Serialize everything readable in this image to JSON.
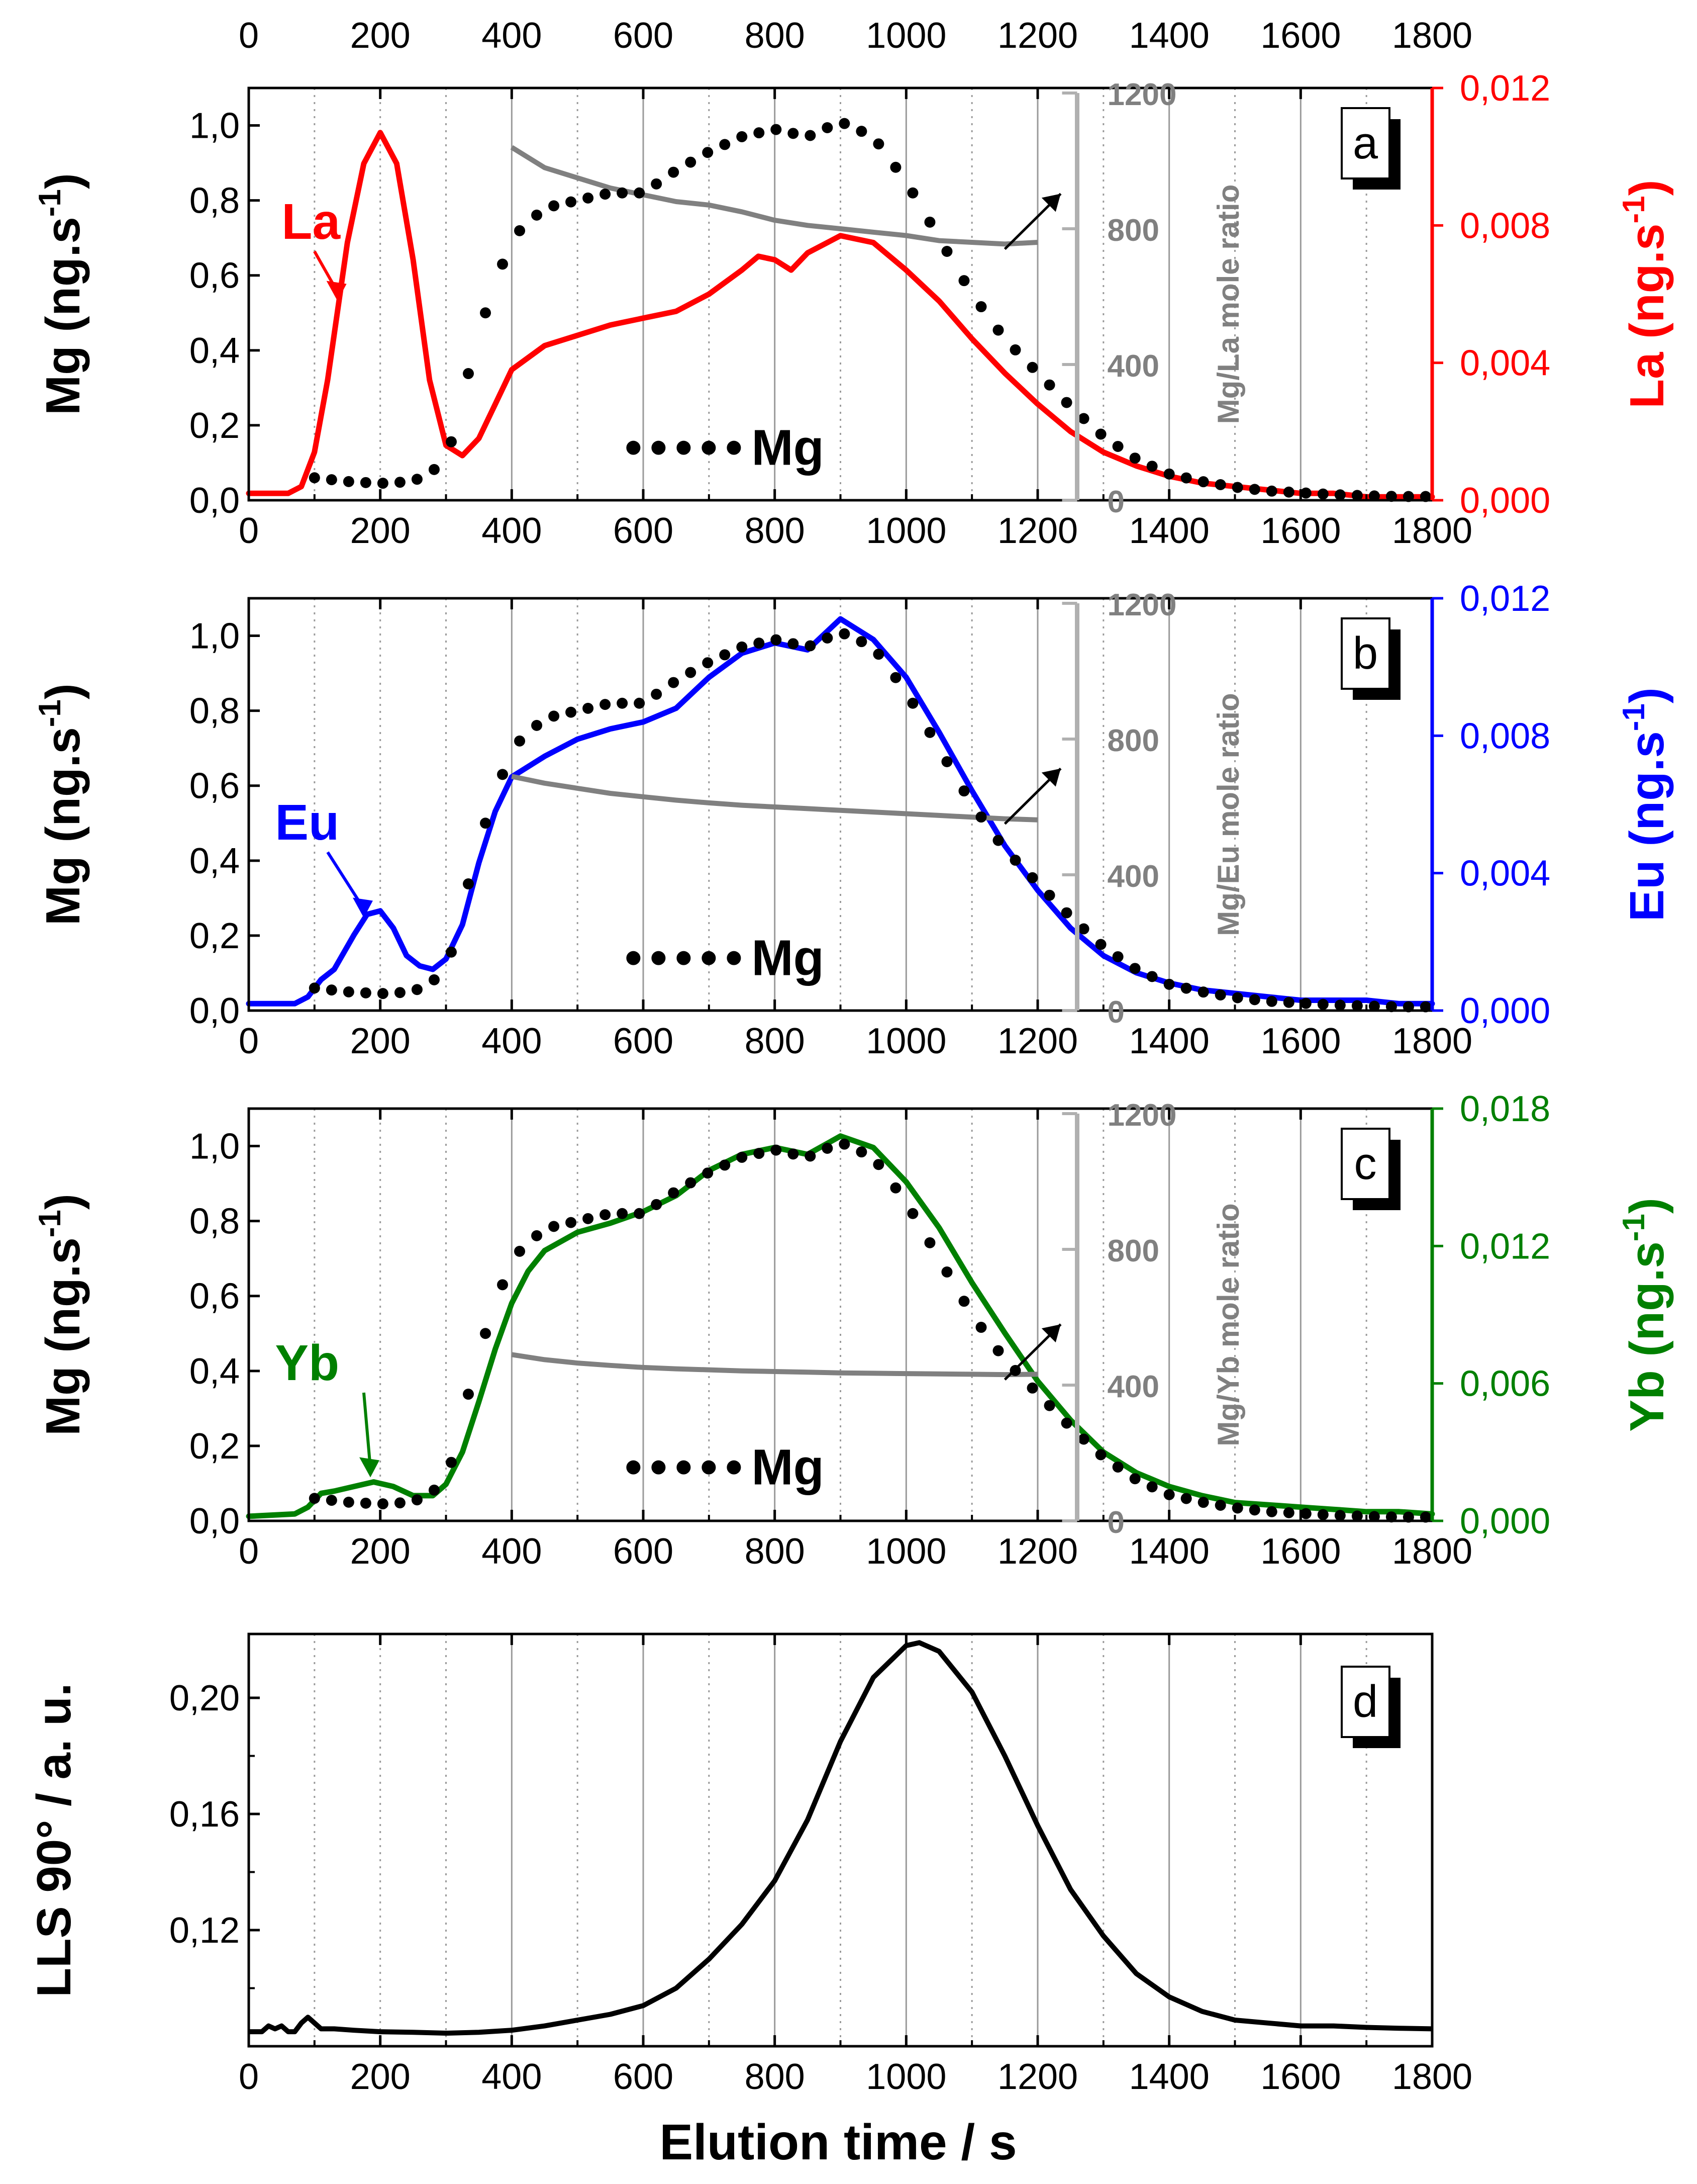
{
  "figure": {
    "x_axis_title": "Elution time / s",
    "x_ticks": [
      "0",
      "200",
      "400",
      "600",
      "800",
      "1000",
      "1200",
      "1400",
      "1600",
      "1800"
    ],
    "top_axis_ticks": [
      "0",
      "200",
      "400",
      "600",
      "800",
      "1000",
      "1200",
      "1400",
      "1600",
      "1800"
    ],
    "mg_label": "Mg",
    "mg_color": "#000000",
    "ratio_color": "#808080",
    "grid_solid": [
      400,
      600,
      800,
      1000,
      1200,
      1400,
      1600
    ],
    "grid_dotted": [
      100,
      200,
      300,
      500,
      700,
      900,
      1100,
      1300,
      1500,
      1700
    ]
  },
  "chart_data": [
    {
      "type": "line",
      "panel": "a",
      "panel_letter": "a",
      "element": "La",
      "element_color": "#ff0000",
      "xlabel": "Elution time / s",
      "xlim": [
        0,
        1800
      ],
      "ylabel_left": "Mg (ng.s-1)",
      "ylim_left": [
        0,
        1.1
      ],
      "left_ticks": [
        "0,0",
        "0,2",
        "0,4",
        "0,6",
        "0,8",
        "1,0"
      ],
      "ylabel_right": "La (ng.s-1)",
      "ylim_right": [
        0,
        0.012
      ],
      "right_ticks": [
        "0,000",
        "0,004",
        "0,008",
        "0,012"
      ],
      "ylabel_ratio": "Mg/La mole ratio",
      "ylim_ratio": [
        0,
        1200
      ],
      "ratio_ticks": [
        "0",
        "400",
        "800",
        "1200"
      ],
      "series": [
        {
          "name": "Mg",
          "axis": "left",
          "style": "dots",
          "x": [
            100,
            150,
            200,
            250,
            300,
            350,
            400,
            450,
            500,
            550,
            600,
            650,
            700,
            750,
            800,
            850,
            900,
            950,
            1000,
            1050,
            1100,
            1150,
            1200,
            1250,
            1300,
            1350,
            1400,
            1450,
            1500,
            1550,
            1600,
            1650,
            1700,
            1750,
            1800
          ],
          "y": [
            0.06,
            0.05,
            0.045,
            0.05,
            0.1,
            0.45,
            0.7,
            0.78,
            0.8,
            0.82,
            0.82,
            0.88,
            0.93,
            0.97,
            0.99,
            0.97,
            1.01,
            0.97,
            0.85,
            0.7,
            0.55,
            0.43,
            0.34,
            0.25,
            0.17,
            0.11,
            0.07,
            0.05,
            0.035,
            0.025,
            0.02,
            0.015,
            0.012,
            0.01,
            0.01
          ]
        },
        {
          "name": "La",
          "axis": "right",
          "x": [
            0,
            60,
            80,
            100,
            120,
            150,
            175,
            200,
            225,
            250,
            275,
            300,
            325,
            350,
            375,
            400,
            450,
            500,
            550,
            600,
            650,
            700,
            750,
            775,
            800,
            825,
            850,
            900,
            950,
            1000,
            1050,
            1100,
            1150,
            1200,
            1250,
            1300,
            1350,
            1400,
            1450,
            1500,
            1550,
            1600,
            1650,
            1700,
            1750,
            1800
          ],
          "y": [
            0.0002,
            0.0002,
            0.0004,
            0.0014,
            0.0035,
            0.0075,
            0.0098,
            0.0107,
            0.0098,
            0.007,
            0.0035,
            0.0016,
            0.0013,
            0.0018,
            0.0028,
            0.0038,
            0.0045,
            0.0048,
            0.0051,
            0.0053,
            0.0055,
            0.006,
            0.0067,
            0.0071,
            0.007,
            0.0067,
            0.0072,
            0.0077,
            0.0075,
            0.0067,
            0.0058,
            0.0047,
            0.0037,
            0.0028,
            0.002,
            0.0014,
            0.001,
            0.0007,
            0.0005,
            0.0004,
            0.0003,
            0.0002,
            0.0002,
            0.0001,
            0.0001,
            0.0001
          ]
        },
        {
          "name": "Mg/La mole ratio",
          "axis": "ratio",
          "x": [
            400,
            450,
            500,
            550,
            600,
            650,
            700,
            750,
            800,
            850,
            900,
            950,
            1000,
            1050,
            1100,
            1150,
            1200
          ],
          "y": [
            1040,
            980,
            950,
            920,
            900,
            880,
            870,
            850,
            825,
            810,
            800,
            790,
            780,
            765,
            760,
            755,
            760
          ]
        }
      ],
      "labels": {
        "element": "La",
        "mg": "Mg",
        "panel": "a"
      }
    },
    {
      "type": "line",
      "panel": "b",
      "panel_letter": "b",
      "element": "Eu",
      "element_color": "#0000ff",
      "xlabel": "Elution time / s",
      "xlim": [
        0,
        1800
      ],
      "ylabel_left": "Mg (ng.s-1)",
      "ylim_left": [
        0,
        1.1
      ],
      "left_ticks": [
        "0,0",
        "0,2",
        "0,4",
        "0,6",
        "0,8",
        "1,0"
      ],
      "ylabel_right": "Eu (ng.s-1)",
      "ylim_right": [
        0,
        0.012
      ],
      "right_ticks": [
        "0,000",
        "0,004",
        "0,008",
        "0,012"
      ],
      "ylabel_ratio": "Mg/Eu mole ratio",
      "ylim_ratio": [
        0,
        1200
      ],
      "ratio_ticks": [
        "0",
        "400",
        "800",
        "1200"
      ],
      "series": [
        {
          "name": "Mg",
          "axis": "left",
          "style": "dots",
          "x": [
            100,
            150,
            200,
            250,
            300,
            350,
            400,
            450,
            500,
            550,
            600,
            650,
            700,
            750,
            800,
            850,
            900,
            950,
            1000,
            1050,
            1100,
            1150,
            1200,
            1250,
            1300,
            1350,
            1400,
            1450,
            1500,
            1550,
            1600,
            1650,
            1700,
            1750,
            1800
          ],
          "y": [
            0.06,
            0.05,
            0.045,
            0.05,
            0.1,
            0.45,
            0.7,
            0.78,
            0.8,
            0.82,
            0.82,
            0.88,
            0.93,
            0.97,
            0.99,
            0.97,
            1.01,
            0.97,
            0.85,
            0.7,
            0.55,
            0.43,
            0.34,
            0.25,
            0.17,
            0.11,
            0.07,
            0.05,
            0.035,
            0.025,
            0.02,
            0.015,
            0.012,
            0.01,
            0.01
          ]
        },
        {
          "name": "Eu",
          "axis": "right",
          "x": [
            0,
            70,
            90,
            110,
            130,
            160,
            180,
            200,
            220,
            240,
            260,
            280,
            300,
            325,
            350,
            375,
            400,
            450,
            500,
            550,
            600,
            650,
            700,
            750,
            800,
            850,
            900,
            950,
            1000,
            1050,
            1100,
            1150,
            1200,
            1250,
            1300,
            1350,
            1400,
            1450,
            1500,
            1550,
            1600,
            1650,
            1700,
            1750,
            1800
          ],
          "y": [
            0.0002,
            0.0002,
            0.0004,
            0.0009,
            0.0012,
            0.0022,
            0.0028,
            0.0029,
            0.0024,
            0.0016,
            0.0013,
            0.0012,
            0.0015,
            0.0025,
            0.0043,
            0.0058,
            0.0068,
            0.0074,
            0.0079,
            0.0082,
            0.0084,
            0.0088,
            0.0097,
            0.0104,
            0.0107,
            0.0105,
            0.0114,
            0.0108,
            0.0097,
            0.0081,
            0.0064,
            0.0048,
            0.0035,
            0.0024,
            0.0016,
            0.0011,
            0.0008,
            0.0006,
            0.0005,
            0.0004,
            0.0003,
            0.0003,
            0.0003,
            0.0002,
            0.0002
          ]
        },
        {
          "name": "Mg/Eu mole ratio",
          "axis": "ratio",
          "x": [
            400,
            450,
            500,
            550,
            600,
            650,
            700,
            750,
            800,
            850,
            900,
            950,
            1000,
            1050,
            1100,
            1150,
            1200
          ],
          "y": [
            690,
            670,
            655,
            640,
            630,
            620,
            612,
            605,
            600,
            595,
            590,
            585,
            580,
            575,
            570,
            565,
            562
          ]
        }
      ],
      "labels": {
        "element": "Eu",
        "mg": "Mg",
        "panel": "b"
      }
    },
    {
      "type": "line",
      "panel": "c",
      "panel_letter": "c",
      "element": "Yb",
      "element_color": "#008000",
      "xlabel": "Elution time / s",
      "xlim": [
        0,
        1800
      ],
      "ylabel_left": "Mg (ng.s-1)",
      "ylim_left": [
        0,
        1.1
      ],
      "left_ticks": [
        "0,0",
        "0,2",
        "0,4",
        "0,6",
        "0,8",
        "1,0"
      ],
      "ylabel_right": "Yb (ng.s-1)",
      "ylim_right": [
        0,
        0.018
      ],
      "right_ticks": [
        "0,000",
        "0,006",
        "0,012",
        "0,018"
      ],
      "ylabel_ratio": "Mg/Yb mole ratio",
      "ylim_ratio": [
        0,
        1200
      ],
      "ratio_ticks": [
        "0",
        "400",
        "800",
        "1200"
      ],
      "series": [
        {
          "name": "Mg",
          "axis": "left",
          "style": "dots",
          "x": [
            100,
            150,
            200,
            250,
            300,
            350,
            400,
            450,
            500,
            550,
            600,
            650,
            700,
            750,
            800,
            850,
            900,
            950,
            1000,
            1050,
            1100,
            1150,
            1200,
            1250,
            1300,
            1350,
            1400,
            1450,
            1500,
            1550,
            1600,
            1650,
            1700,
            1750,
            1800
          ],
          "y": [
            0.06,
            0.05,
            0.045,
            0.05,
            0.1,
            0.45,
            0.7,
            0.78,
            0.8,
            0.82,
            0.82,
            0.88,
            0.93,
            0.97,
            0.99,
            0.97,
            1.01,
            0.97,
            0.85,
            0.7,
            0.55,
            0.43,
            0.34,
            0.25,
            0.17,
            0.11,
            0.07,
            0.05,
            0.035,
            0.025,
            0.02,
            0.015,
            0.012,
            0.01,
            0.01
          ]
        },
        {
          "name": "Yb",
          "axis": "right",
          "x": [
            0,
            70,
            90,
            110,
            130,
            160,
            190,
            220,
            250,
            280,
            300,
            325,
            350,
            375,
            400,
            425,
            450,
            500,
            550,
            600,
            650,
            700,
            750,
            800,
            850,
            900,
            950,
            1000,
            1050,
            1100,
            1150,
            1200,
            1250,
            1300,
            1350,
            1400,
            1450,
            1500,
            1550,
            1600,
            1650,
            1700,
            1750,
            1800
          ],
          "y": [
            0.0002,
            0.0003,
            0.0006,
            0.0012,
            0.0013,
            0.0015,
            0.0017,
            0.0015,
            0.0011,
            0.0011,
            0.0016,
            0.003,
            0.0052,
            0.0075,
            0.0095,
            0.0109,
            0.0118,
            0.0126,
            0.013,
            0.0135,
            0.0142,
            0.0153,
            0.016,
            0.0163,
            0.016,
            0.0168,
            0.0163,
            0.0148,
            0.0128,
            0.0104,
            0.0082,
            0.0061,
            0.0044,
            0.003,
            0.0021,
            0.0015,
            0.0011,
            0.0008,
            0.0007,
            0.0006,
            0.0005,
            0.0004,
            0.0004,
            0.0003
          ]
        },
        {
          "name": "Mg/Yb mole ratio",
          "axis": "ratio",
          "x": [
            400,
            450,
            500,
            550,
            600,
            650,
            700,
            750,
            800,
            850,
            900,
            950,
            1000,
            1050,
            1100,
            1150,
            1200
          ],
          "y": [
            490,
            475,
            465,
            458,
            452,
            448,
            445,
            442,
            440,
            438,
            436,
            435,
            434,
            433,
            432,
            431,
            432
          ]
        }
      ],
      "labels": {
        "element": "Yb",
        "mg": "Mg",
        "panel": "c"
      }
    },
    {
      "type": "line",
      "panel": "d",
      "panel_letter": "d",
      "xlabel": "Elution time / s",
      "xlim": [
        0,
        1800
      ],
      "ylabel_left": "LLS 90° / a. u.",
      "ylim_left": [
        0.08,
        0.222
      ],
      "left_ticks": [
        "0,12",
        "0,16",
        "0,20"
      ],
      "left_tick_values": [
        0.12,
        0.16,
        0.2
      ],
      "series": [
        {
          "name": "LLS 90°",
          "axis": "left",
          "color": "#000000",
          "x": [
            0,
            20,
            30,
            40,
            50,
            60,
            70,
            80,
            90,
            100,
            110,
            130,
            160,
            200,
            250,
            300,
            350,
            400,
            450,
            500,
            550,
            600,
            650,
            700,
            750,
            800,
            850,
            900,
            950,
            1000,
            1020,
            1050,
            1100,
            1150,
            1200,
            1250,
            1300,
            1350,
            1400,
            1450,
            1500,
            1550,
            1600,
            1650,
            1700,
            1750,
            1800
          ],
          "y": [
            0.085,
            0.085,
            0.087,
            0.086,
            0.087,
            0.085,
            0.085,
            0.088,
            0.09,
            0.088,
            0.086,
            0.086,
            0.0855,
            0.085,
            0.0848,
            0.0845,
            0.0848,
            0.0855,
            0.087,
            0.089,
            0.091,
            0.094,
            0.1,
            0.11,
            0.122,
            0.137,
            0.158,
            0.185,
            0.207,
            0.218,
            0.219,
            0.216,
            0.202,
            0.18,
            0.156,
            0.134,
            0.118,
            0.105,
            0.097,
            0.092,
            0.089,
            0.088,
            0.087,
            0.087,
            0.0865,
            0.0862,
            0.086
          ]
        }
      ],
      "labels": {
        "panel": "d"
      }
    }
  ]
}
